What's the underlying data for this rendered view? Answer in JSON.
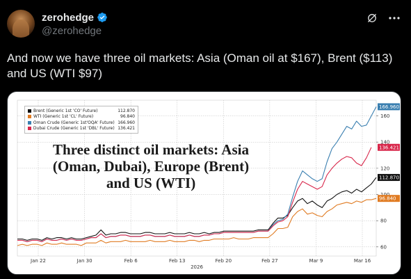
{
  "header": {
    "display_name": "zerohedge",
    "handle": "@zerohedge",
    "verified": true,
    "avatar": "avatar-photo",
    "icons": [
      "verified-badge-icon",
      "grok-icon",
      "more-icon"
    ]
  },
  "tweet": {
    "text": "And now we have three oil markets: Asia (Oman oil at $167), Brent ($113) and US (WTI $97)"
  },
  "chart_data": {
    "type": "line",
    "annotation": "Three distinct oil markets: Asia (Oman, Dubai), Europe (Brent) and US (WTI)",
    "x_tick_labels": [
      "Jan 22",
      "Jan 30",
      "Feb 6",
      "Feb 13",
      "Feb 20",
      "Feb 27",
      "Mar 9",
      "Mar 16"
    ],
    "x_axis_year": "2026",
    "y_ticks": [
      60,
      80,
      100,
      120,
      140,
      160
    ],
    "ylim": [
      53,
      172
    ],
    "grid": true,
    "legend_placement": "top-left",
    "series": [
      {
        "name": "Brent (Generic 1st 'CO' Future)",
        "last": "112.870",
        "color": "#111111",
        "values": [
          66,
          66,
          65,
          66,
          66,
          65,
          67,
          66,
          67,
          67,
          66,
          67,
          66,
          66,
          67,
          68,
          69,
          73,
          69,
          70,
          70,
          71,
          71,
          70,
          70,
          70,
          71,
          71,
          70,
          70,
          70,
          71,
          70,
          70,
          70,
          71,
          70,
          70,
          71,
          70,
          71,
          71,
          72,
          72,
          72,
          72,
          72,
          72,
          72,
          73,
          73,
          73,
          78,
          82,
          82,
          84,
          90,
          95,
          97,
          93,
          95,
          92,
          90,
          95,
          97,
          100,
          102,
          103,
          101,
          104,
          102,
          105,
          108,
          113
        ]
      },
      {
        "name": "WTI (Generic 1st 'CL' Future)",
        "last": "96.840",
        "color": "#e07b22",
        "values": [
          61,
          62,
          61,
          62,
          62,
          61,
          63,
          62,
          62,
          63,
          62,
          62,
          62,
          61,
          63,
          63,
          63,
          65,
          63,
          64,
          64,
          64,
          65,
          64,
          64,
          64,
          64,
          65,
          64,
          64,
          64,
          65,
          64,
          64,
          64,
          65,
          65,
          64,
          65,
          65,
          66,
          66,
          66,
          66,
          67,
          66,
          66,
          66,
          67,
          67,
          67,
          67,
          70,
          74,
          74,
          75,
          83,
          87,
          89,
          85,
          86,
          84,
          83,
          87,
          89,
          92,
          93,
          94,
          93,
          95,
          94,
          96,
          96,
          97
        ]
      },
      {
        "name": "Oman Crude (Generic 1st'OQA' Future)",
        "last": "166.960",
        "color": "#3a7fb0",
        "values": [
          65,
          65,
          64,
          65,
          65,
          64,
          66,
          65,
          65,
          66,
          65,
          66,
          65,
          65,
          66,
          67,
          67,
          70,
          67,
          68,
          68,
          69,
          69,
          68,
          68,
          68,
          69,
          69,
          68,
          68,
          68,
          69,
          68,
          68,
          68,
          69,
          68,
          68,
          69,
          69,
          70,
          70,
          71,
          71,
          71,
          71,
          71,
          71,
          71,
          72,
          72,
          72,
          77,
          80,
          81,
          85,
          98,
          110,
          118,
          115,
          112,
          110,
          112,
          125,
          135,
          140,
          146,
          152,
          150,
          156,
          152,
          153,
          160,
          167
        ]
      },
      {
        "name": "Dubai Crude (Generic 1st 'DBL' Future)",
        "last": "136.421",
        "color": "#d8264a",
        "values": [
          65,
          65,
          64,
          65,
          65,
          64,
          66,
          65,
          65,
          66,
          65,
          66,
          65,
          65,
          66,
          67,
          67,
          70,
          67,
          68,
          68,
          69,
          69,
          68,
          68,
          68,
          69,
          69,
          68,
          68,
          68,
          69,
          68,
          68,
          68,
          69,
          68,
          68,
          69,
          69,
          70,
          70,
          71,
          71,
          71,
          71,
          71,
          71,
          71,
          72,
          72,
          72,
          76,
          79,
          80,
          83,
          94,
          104,
          110,
          108,
          106,
          104,
          106,
          115,
          120,
          124,
          127,
          129,
          128,
          124,
          122,
          128,
          136
        ]
      }
    ]
  }
}
